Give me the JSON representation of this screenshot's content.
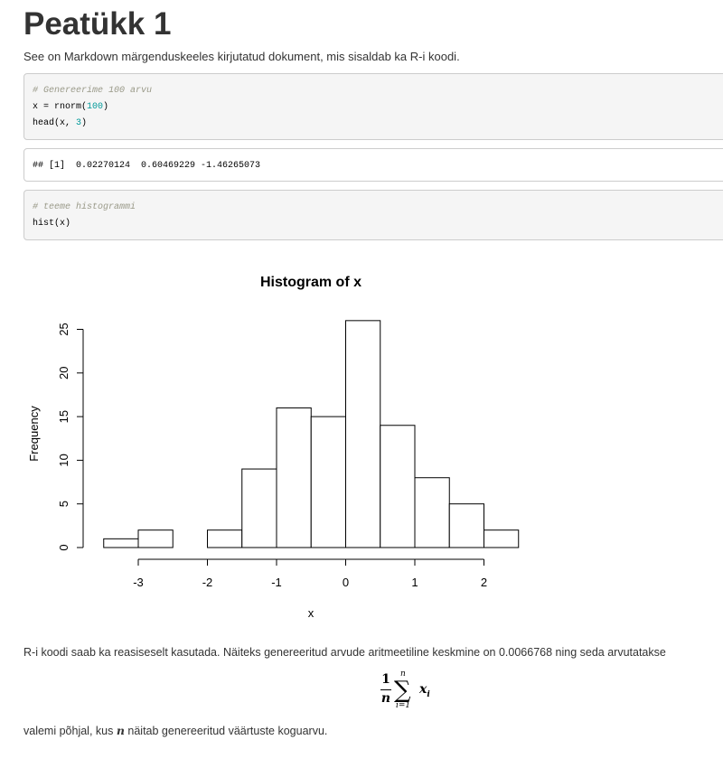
{
  "heading": "Peatükk 1",
  "intro": "See on Markdown märgenduskeeles kirjutatud dokument, mis sisaldab ka R-i koodi.",
  "code_block_1": {
    "comment": "# Genereerime 100 arvu",
    "line2_pre": "x = rnorm(",
    "line2_num": "100",
    "line2_post": ")",
    "line3_pre": "head(x, ",
    "line3_num": "3",
    "line3_post": ")"
  },
  "output_block": {
    "text": "## [1]  0.02270124  0.60469229 -1.46265073"
  },
  "code_block_2": {
    "comment": "# teeme histogrammi",
    "line2": "hist(x)"
  },
  "chart_data": {
    "type": "bar",
    "title": "Histogram of x",
    "xlabel": "x",
    "ylabel": "Frequency",
    "bin_width": 0.5,
    "bins_start": [
      -3.5,
      -3.0,
      -2.5,
      -2.0,
      -1.5,
      -1.0,
      -0.5,
      0.0,
      0.5,
      1.0,
      1.5,
      2.0
    ],
    "values": [
      1,
      2,
      0,
      2,
      9,
      16,
      15,
      26,
      14,
      8,
      5,
      2
    ],
    "x_ticks": [
      "-3",
      "-2",
      "-1",
      "0",
      "1",
      "2"
    ],
    "y_ticks": [
      "0",
      "5",
      "10",
      "15",
      "20",
      "25"
    ],
    "xlim": [
      -3.5,
      2.5
    ],
    "ylim": [
      0,
      26
    ],
    "grid": false
  },
  "para1": "R-i koodi saab ka reasiseselt kasutada. Näiteks genereeritud arvude aritmeetiline keskmine on 0.0066768 ning seda arvutatakse",
  "formula": {
    "numerator": "1",
    "denominator": "n",
    "sum_upper": "n",
    "sum_lower": "i=1",
    "sigma": "∑",
    "term": "x",
    "term_sub": "i"
  },
  "para2": {
    "before": "valemi põhjal, kus ",
    "var": "n",
    "after": " näitab genereeritud väärtuste koguarvu."
  }
}
